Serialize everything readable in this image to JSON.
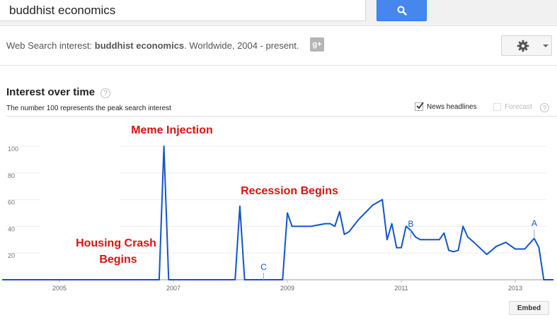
{
  "search": {
    "query": "buddhist economics"
  },
  "icons": {
    "search": "search-icon",
    "share": "google-plus-icon",
    "settings": "gear-icon",
    "help": "help-icon"
  },
  "summary": {
    "prefix": "Web Search interest: ",
    "term": "buddhist economics",
    "suffix": ". Worldwide, 2004 - present."
  },
  "gplus_label": "g+",
  "section": {
    "title": "Interest over time",
    "subtitle": "The number 100 represents the peak search interest",
    "help": "?"
  },
  "options": {
    "news_headlines": {
      "label": "News headlines",
      "checked": true
    },
    "forecast": {
      "label": "Forecast",
      "checked": false,
      "help": "?"
    }
  },
  "embed_label": "Embed",
  "colors": {
    "line": "#1155cc",
    "annotation": "#dd1111",
    "axis": "#999999",
    "search_button": "#4787ed"
  },
  "chart_data": {
    "type": "line",
    "ylim": [
      0,
      100
    ],
    "yticks": [
      20,
      40,
      60,
      80,
      100
    ],
    "xticks": [
      "2005",
      "2007",
      "2009",
      "2011",
      "2013"
    ],
    "xlim": [
      "2004-01",
      "2013-12"
    ],
    "grid": "horizontal",
    "series": [
      {
        "x": [
          "2004-01",
          "2006-10",
          "2006-11",
          "2006-12",
          "2008-02",
          "2008-03",
          "2008-04",
          "2008-12",
          "2009-01",
          "2009-02",
          "2009-06",
          "2009-09",
          "2009-10",
          "2009-11",
          "2009-12",
          "2010-01",
          "2010-02",
          "2010-04",
          "2010-07",
          "2010-09",
          "2010-10",
          "2010-11",
          "2010-12",
          "2011-01",
          "2011-02",
          "2011-03",
          "2011-04",
          "2011-05",
          "2011-06",
          "2011-09",
          "2011-10",
          "2011-11",
          "2011-12",
          "2012-01",
          "2012-02",
          "2012-03",
          "2012-04",
          "2012-07",
          "2012-09",
          "2012-11",
          "2013-01",
          "2013-03",
          "2013-05",
          "2013-06",
          "2013-07",
          "2013-09"
        ],
        "y": [
          0,
          0,
          100,
          0,
          0,
          55,
          0,
          0,
          50,
          40,
          40,
          42,
          42,
          40,
          51,
          34,
          36,
          45,
          56,
          60,
          30,
          42,
          24,
          24,
          40,
          37,
          32,
          30,
          30,
          30,
          35,
          22,
          21,
          22,
          40,
          32,
          29,
          19,
          25,
          28,
          23,
          23,
          31,
          24,
          0,
          0
        ]
      }
    ],
    "news_markers": [
      {
        "label": "A",
        "x": "2013-05"
      },
      {
        "label": "B",
        "x": "2011-03"
      },
      {
        "label": "C",
        "x": "2008-08"
      }
    ],
    "annotations": [
      {
        "text": "Meme Injection"
      },
      {
        "text": "Recession Begins"
      },
      {
        "text": "Housing Crash"
      },
      {
        "text": "Begins"
      }
    ]
  }
}
